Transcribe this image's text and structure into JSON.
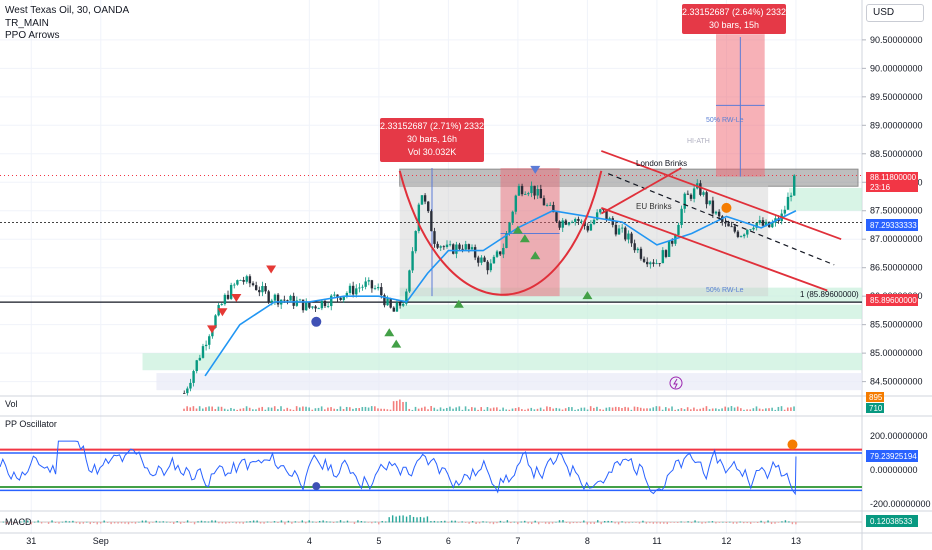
{
  "legend": {
    "symbol": "West Texas Oil, 30, OANDA",
    "study1": "TR_MAIN",
    "study2": "PPO Arrows"
  },
  "currency": "USD",
  "panes": {
    "volume": "Vol",
    "oscillator": "PP Oscillator",
    "macd": "MACD"
  },
  "colors": {
    "bull": "#26a69a",
    "bear": "#ef5350",
    "up_arrow": "#43a047",
    "down_arrow": "#e53935",
    "ma": "#2196f3",
    "cup": "#e0303a",
    "channel": "#e0303a",
    "rect": "#707070",
    "measure_bg": "#f06370",
    "measure_label": "#e53947",
    "osc_line": "#2962ff",
    "osc_red": "#f23645",
    "osc_green": "#43a047",
    "price_tag": "#f23645",
    "blue_tag": "#2962ff",
    "green_tag": "#089981"
  },
  "annotations": {
    "measure1_line1": "2.33152687 (2.71%) 2332",
    "measure1_line2": "30 bars, 16h",
    "measure1_line3": "Vol 30.032K",
    "measure2_line1": "2.33152687 (2.64%) 2332",
    "measure2_line2": "30 bars, 15h",
    "london_label": "London Brinks",
    "channel_label": "EU Brinks",
    "rw1": "50% RW-Le",
    "rw2": "50% RW-Le",
    "hi_label": "HI-ATH",
    "level_label": "1 (85.89600000)"
  },
  "price_tags": {
    "last": "88.11800000",
    "countdown": "23:16",
    "blue": "87.29333333",
    "red": "85.89600000",
    "vol1": "895",
    "vol2": "710",
    "osc": "79.23925194",
    "macd": "0.12038533"
  },
  "chart_data": {
    "type": "candlestick",
    "instrument": "West Texas Oil, 30, OANDA",
    "y_axis_price": {
      "min": 84.3,
      "max": 91.2,
      "ticks": [
        "84.50000000",
        "85.00000000",
        "85.50000000",
        "86.00000000",
        "86.50000000",
        "87.00000000",
        "87.50000000",
        "88.00000000",
        "88.50000000",
        "89.00000000",
        "89.50000000",
        "90.00000000",
        "90.50000000"
      ]
    },
    "y_axis_osc": {
      "ticks": [
        "200.00000000",
        "0.00000000",
        "-200.00000000"
      ]
    },
    "x_axis": {
      "ticks": [
        {
          "label": "31",
          "day": 31
        },
        {
          "label": "Sep",
          "day": 32
        },
        {
          "label": "4",
          "day": 35
        },
        {
          "label": "5",
          "day": 36
        },
        {
          "label": "6",
          "day": 37
        },
        {
          "label": "7",
          "day": 38
        },
        {
          "label": "8",
          "day": 39
        },
        {
          "label": "11",
          "day": 40
        },
        {
          "label": "12",
          "day": 41
        },
        {
          "label": "13",
          "day": 42
        }
      ]
    },
    "price_path": [
      [
        33.2,
        84.3
      ],
      [
        33.4,
        84.9
      ],
      [
        33.6,
        85.5
      ],
      [
        33.8,
        86.0
      ],
      [
        34.0,
        86.3
      ],
      [
        34.2,
        86.2
      ],
      [
        34.4,
        86.0
      ],
      [
        34.6,
        85.95
      ],
      [
        34.8,
        85.9
      ],
      [
        35.0,
        85.8
      ],
      [
        35.2,
        85.9
      ],
      [
        35.4,
        86.0
      ],
      [
        35.6,
        86.1
      ],
      [
        35.8,
        86.2
      ],
      [
        36.0,
        86.1
      ],
      [
        36.2,
        85.7
      ],
      [
        36.4,
        86.0
      ],
      [
        36.6,
        87.9
      ],
      [
        36.8,
        87.0
      ],
      [
        37.0,
        86.8
      ],
      [
        37.2,
        86.9
      ],
      [
        37.4,
        86.7
      ],
      [
        37.6,
        86.5
      ],
      [
        37.8,
        86.9
      ],
      [
        38.0,
        87.9
      ],
      [
        38.2,
        87.9
      ],
      [
        38.4,
        87.6
      ],
      [
        38.6,
        87.3
      ],
      [
        38.8,
        87.4
      ],
      [
        39.0,
        87.2
      ],
      [
        39.2,
        87.5
      ],
      [
        39.4,
        87.2
      ],
      [
        39.6,
        87.0
      ],
      [
        39.8,
        86.7
      ],
      [
        40.0,
        86.6
      ],
      [
        40.2,
        86.9
      ],
      [
        40.4,
        87.7
      ],
      [
        40.6,
        87.9
      ],
      [
        40.8,
        87.5
      ],
      [
        41.0,
        87.2
      ],
      [
        41.2,
        87.1
      ],
      [
        41.4,
        87.3
      ],
      [
        41.6,
        87.2
      ],
      [
        41.8,
        87.4
      ],
      [
        42.0,
        88.1
      ]
    ],
    "ma_path": [
      [
        33.5,
        84.6
      ],
      [
        34.0,
        85.5
      ],
      [
        34.5,
        85.9
      ],
      [
        35.0,
        85.9
      ],
      [
        35.5,
        86.0
      ],
      [
        36.0,
        86.0
      ],
      [
        36.4,
        85.9
      ],
      [
        36.7,
        86.4
      ],
      [
        37.0,
        86.8
      ],
      [
        37.5,
        86.8
      ],
      [
        38.0,
        87.2
      ],
      [
        38.5,
        87.5
      ],
      [
        39.0,
        87.4
      ],
      [
        39.5,
        87.3
      ],
      [
        40.0,
        86.9
      ],
      [
        40.5,
        87.1
      ],
      [
        41.0,
        87.4
      ],
      [
        41.5,
        87.2
      ],
      [
        42.0,
        87.5
      ]
    ],
    "levels": {
      "resistance_top": 88.25,
      "resistance_bottom": 87.95,
      "support": 85.896,
      "blue_dashed": 87.29333333,
      "last_price": 88.118
    },
    "measure_targets": {
      "from": 88.1,
      "to": 90.6
    },
    "oscillator_last": 79.23925194,
    "macd_last": 0.12038533
  }
}
